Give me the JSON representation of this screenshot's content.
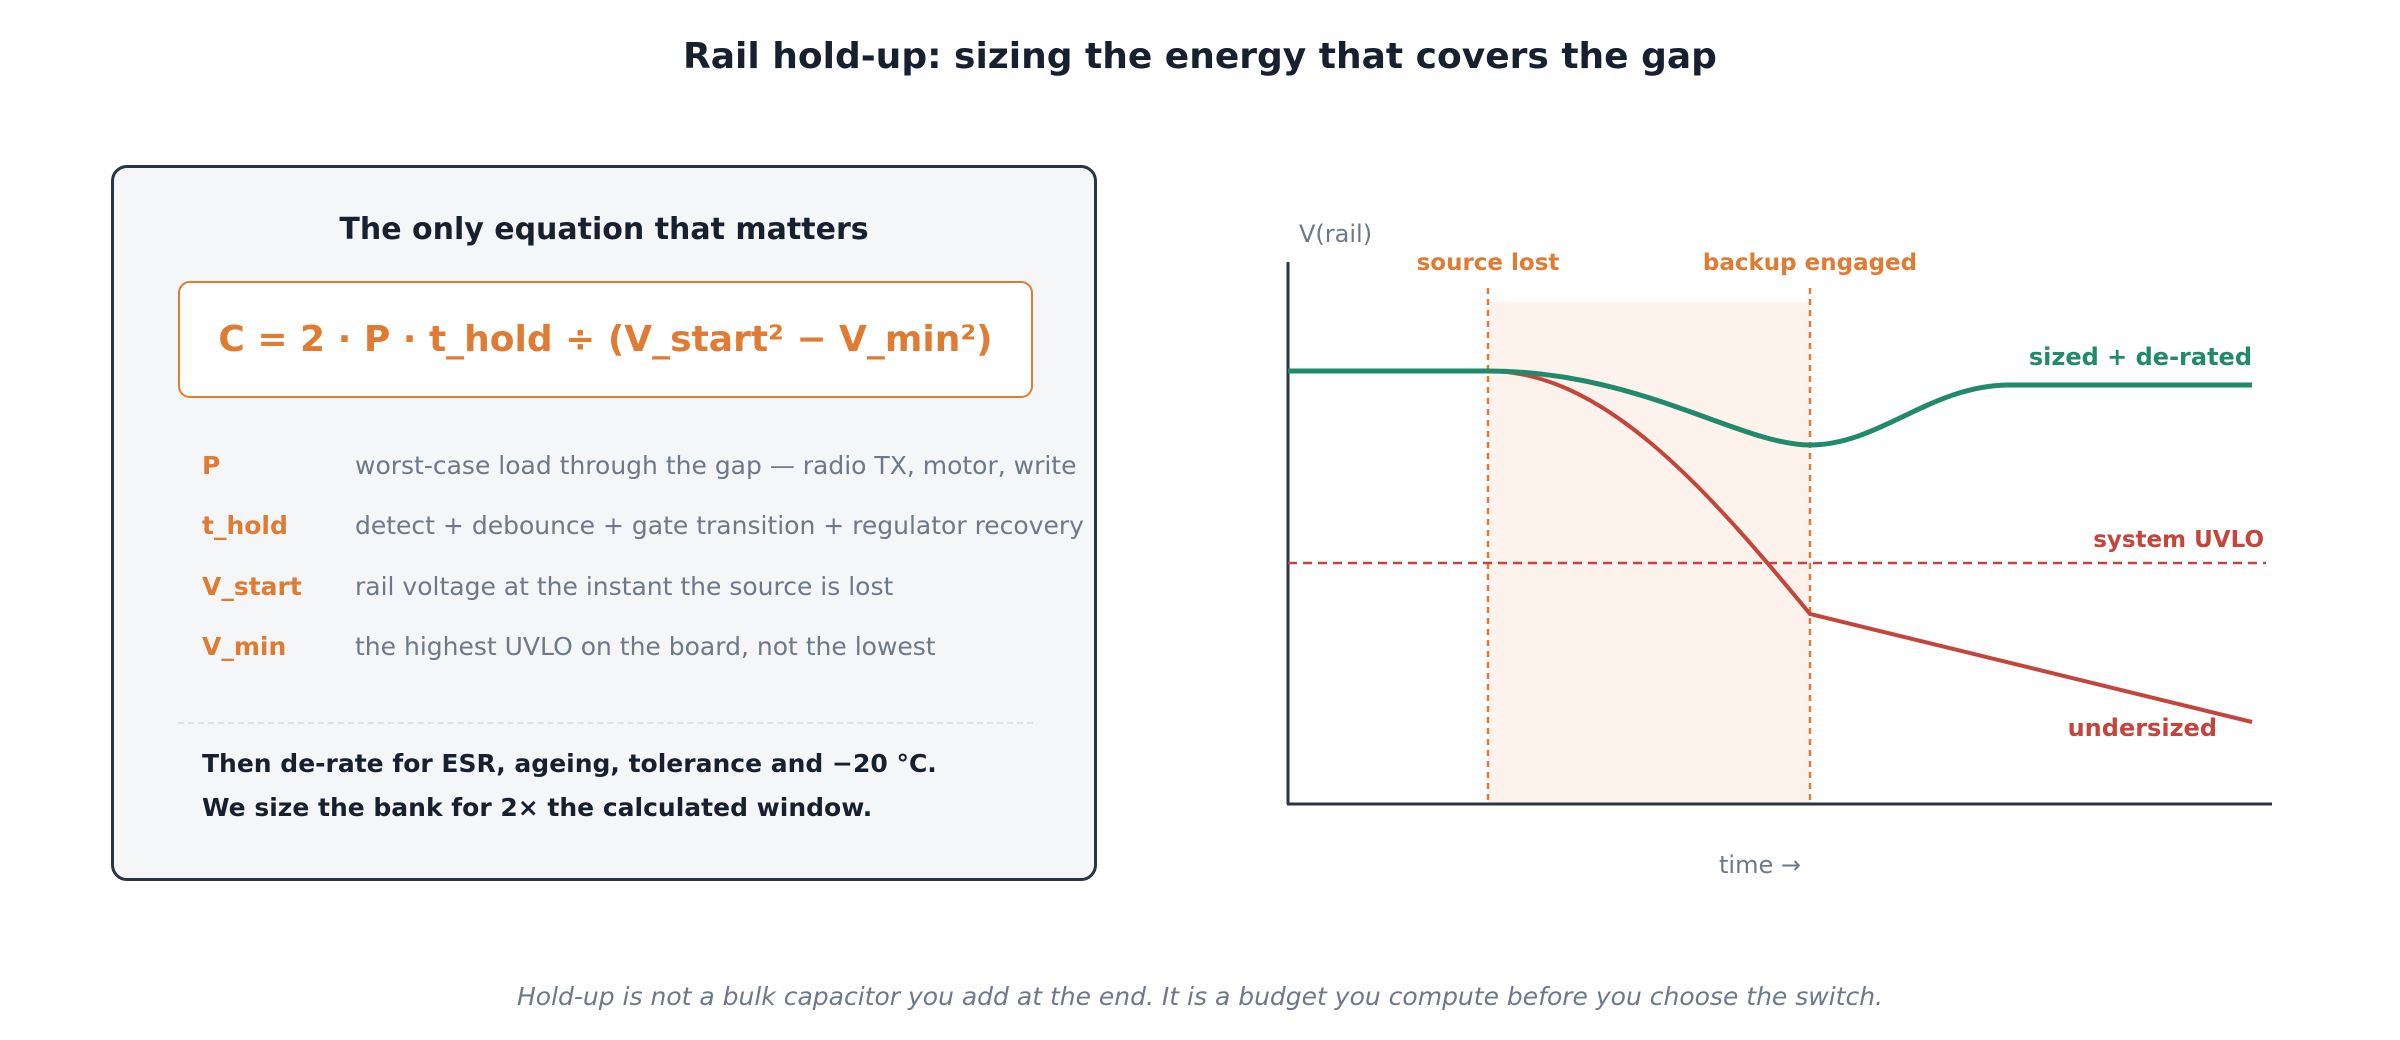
{
  "title": "Rail hold-up: sizing the energy that covers the gap",
  "panel": {
    "title": "The only equation that matters",
    "formula": "C = 2 · P · t_hold ÷ (V_start² − V_min²)",
    "variables": [
      {
        "name": "P",
        "desc": "worst-case load through the gap — radio TX, motor, write"
      },
      {
        "name": "t_hold",
        "desc": "detect + debounce + gate transition + regulator recovery"
      },
      {
        "name": "V_start",
        "desc": "rail voltage at the instant the source is lost"
      },
      {
        "name": "V_min",
        "desc": "the highest UVLO on the board, not the lowest"
      }
    ],
    "notes": [
      "Then de-rate for ESR, ageing, tolerance and −20 °C.",
      "We size the bank for 2× the calculated window."
    ]
  },
  "diagram": {
    "y_axis_label": "V(rail)",
    "x_axis_label": "time →",
    "events": [
      {
        "label": "source lost"
      },
      {
        "label": "backup engaged"
      }
    ],
    "threshold_label": "system UVLO",
    "curves": [
      {
        "label": "sized + de-rated",
        "color": "#218a6a"
      },
      {
        "label": "undersized",
        "color": "#c4453b"
      }
    ],
    "accent_color": "#e07b33",
    "window_shading_color": "#fdf3ec"
  },
  "caption": "Hold-up is not a bulk capacitor you add at the end. It is a budget you compute before you choose the switch."
}
